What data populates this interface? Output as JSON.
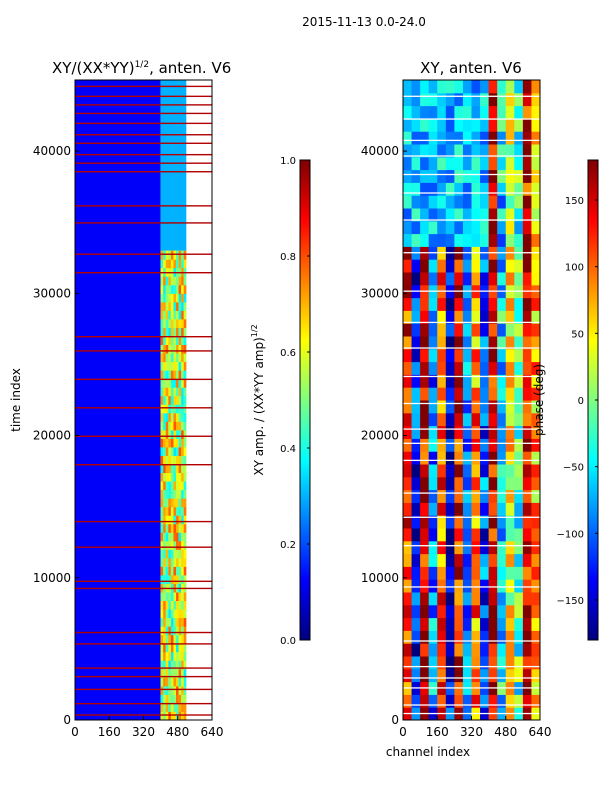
{
  "chart_data": [
    {
      "type": "heatmap",
      "suptitle": "2015-11-13 0.0-24.0",
      "title": "XY/(XX*YY)",
      "title_exponent": "1/2",
      "title_suffix": ", anten. V6",
      "xlabel": "",
      "ylabel": "time index",
      "xlim": [
        0,
        640
      ],
      "ylim": [
        0,
        45000
      ],
      "xticks": [
        0,
        160,
        320,
        480,
        640
      ],
      "yticks": [
        0,
        10000,
        20000,
        30000,
        40000
      ],
      "colorbar": {
        "label": "XY amp. / (XX*YY amp)",
        "label_exponent": "1/2",
        "range": [
          0.0,
          1.0
        ],
        "ticks": [
          "0.0",
          "0.2",
          "0.4",
          "0.6",
          "0.8",
          "1.0"
        ],
        "tick_values": [
          0.0,
          0.2,
          0.4,
          0.6,
          0.8,
          1.0
        ]
      },
      "regions": [
        {
          "x": [
            0,
            400
          ],
          "y": [
            0,
            45000
          ],
          "level": 0.12
        },
        {
          "x": [
            400,
            520
          ],
          "y": [
            0,
            33000
          ],
          "level": 0.6
        },
        {
          "x": [
            400,
            520
          ],
          "y": [
            33000,
            45000
          ],
          "level": 0.3
        }
      ]
    },
    {
      "type": "heatmap",
      "title": "XY, anten. V6",
      "xlabel": "channel index",
      "ylabel": "",
      "xlim": [
        0,
        640
      ],
      "ylim": [
        0,
        45000
      ],
      "xticks": [
        0,
        160,
        320,
        480,
        640
      ],
      "yticks": [
        0,
        10000,
        20000,
        30000,
        40000
      ],
      "colorbar": {
        "label": "phase (deg)",
        "range": [
          -180,
          180
        ],
        "ticks": [
          "−150",
          "−100",
          "−50",
          "0",
          "50",
          "100",
          "150"
        ],
        "tick_values": [
          -150,
          -100,
          -50,
          0,
          50,
          100,
          150
        ]
      },
      "regions": [
        {
          "x": [
            0,
            640
          ],
          "y": [
            0,
            45000
          ],
          "level": "mixed"
        }
      ]
    }
  ],
  "colors": {
    "jet": [
      "#00007f",
      "#0000ff",
      "#007fff",
      "#00ffff",
      "#7fff7f",
      "#ffff00",
      "#ff7f00",
      "#ff0000",
      "#7f0000"
    ]
  }
}
